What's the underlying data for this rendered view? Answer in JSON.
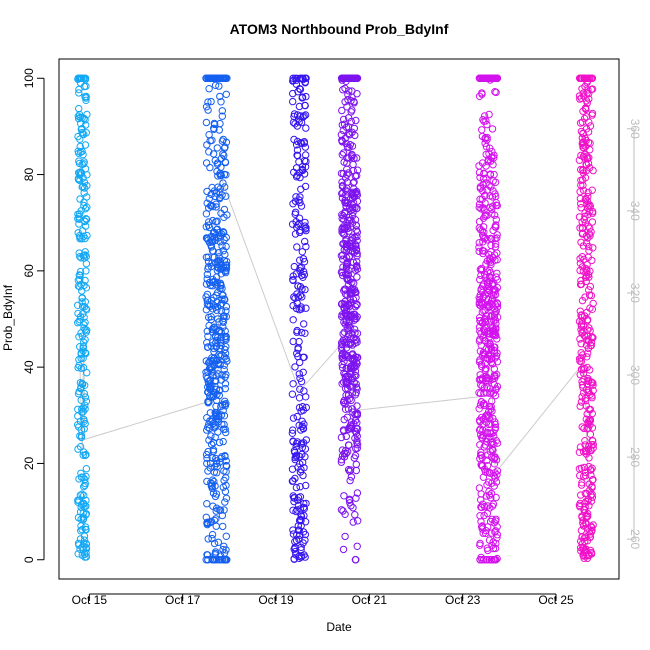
{
  "chart_data": {
    "type": "scatter",
    "title": "ATOM3 Northbound Prob_BdyInf",
    "xlabel": "Date",
    "ylabel": "Prob_BdyInf",
    "x_tick_labels": [
      "Oct 15",
      "Oct 17",
      "Oct 19",
      "Oct 21",
      "Oct 23",
      "Oct 25"
    ],
    "x_tick_values": [
      15,
      17,
      19,
      21,
      23,
      25
    ],
    "xlim": [
      14.35,
      26.35
    ],
    "ylim": [
      -4,
      104
    ],
    "y_ticks": [
      0,
      20,
      40,
      60,
      80,
      100
    ],
    "y2lim": [
      250.3,
      377
    ],
    "y2_ticks": [
      260,
      280,
      300,
      320,
      340,
      360
    ],
    "grid": false,
    "point_style": "open circles",
    "line_color": "#cccccc",
    "clusters": [
      {
        "x_start": 14.75,
        "x_end": 14.95,
        "color": "#12a8f5",
        "n": 260,
        "dist": "wide"
      },
      {
        "x_start": 17.5,
        "x_end": 17.95,
        "color": "#1560f0",
        "n": 520,
        "dist": "mid"
      },
      {
        "x_start": 19.35,
        "x_end": 19.65,
        "color": "#3515ef",
        "n": 260,
        "dist": "wide"
      },
      {
        "x_start": 20.4,
        "x_end": 20.75,
        "color": "#7d14ef",
        "n": 520,
        "dist": "high"
      },
      {
        "x_start": 23.35,
        "x_end": 23.75,
        "color": "#d313ee",
        "n": 560,
        "dist": "mid"
      },
      {
        "x_start": 25.5,
        "x_end": 25.8,
        "color": "#f012c8",
        "n": 380,
        "dist": "wide"
      }
    ],
    "gray_line": {
      "x": [
        14.8,
        14.85,
        14.88,
        14.9,
        17.6,
        17.75,
        17.8,
        19.5,
        20.6,
        20.65,
        20.7,
        23.5,
        23.6,
        23.7,
        25.6,
        25.7
      ],
      "y": [
        40,
        22,
        48,
        25,
        33,
        36,
        80,
        35,
        47,
        58,
        31,
        34,
        43,
        18,
        41,
        12
      ]
    }
  }
}
